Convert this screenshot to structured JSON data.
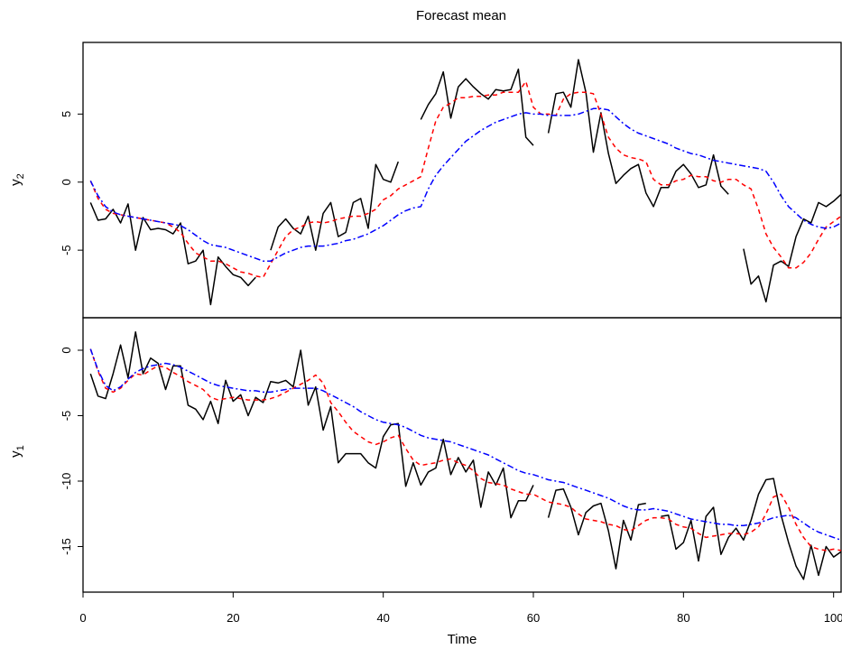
{
  "chart_data": {
    "type": "line",
    "title": "Forecast mean",
    "xlabel": "Time",
    "xlim": [
      0,
      101
    ],
    "xticks": [
      "0",
      "20",
      "40",
      "60",
      "80",
      "100"
    ],
    "colors": {
      "observed": "#000000",
      "forecast_red": "#ff0000",
      "forecast_blue": "#0000ff"
    },
    "panels": [
      {
        "ylabel": "y",
        "ylabel_sub": "2",
        "ylim": [
          -9.5,
          9.8
        ],
        "yticks": [
          "-5",
          "0",
          "5"
        ],
        "series": [
          {
            "values": [
              -1.5,
              -2.8,
              -2.7,
              -2.0,
              -3.0,
              -1.6,
              -5.0,
              -2.6,
              -3.5,
              -3.4,
              -3.5,
              -3.8,
              -3.0,
              -6.0,
              -5.8,
              -5.0,
              -9.0,
              -5.5,
              -6.2,
              -6.8,
              -7.0,
              -7.6,
              -7.0,
              null,
              -5.0,
              -3.3,
              -2.7,
              -3.4,
              -3.8,
              -2.5,
              -5.0,
              -2.3,
              -1.5,
              -4.0,
              -3.7,
              -1.5,
              -1.2,
              -3.4,
              1.3,
              0.2,
              0,
              1.5,
              null,
              null,
              4.6,
              5.7,
              6.5,
              8.1,
              4.7,
              7.0,
              7.6,
              7.0,
              6.5,
              6.1,
              6.8,
              6.7,
              6.8,
              8.3,
              3.3,
              2.7,
              null,
              3.6,
              6.5,
              6.6,
              5.5,
              9.0,
              6.6,
              2.2,
              5.1,
              2.1,
              -0.1,
              0.5,
              1.0,
              1.3,
              -0.8,
              -1.8,
              -0.4,
              -0.4,
              0.8,
              1.3,
              0.6,
              -0.4,
              -0.2,
              2.0,
              -0.3,
              -0.9,
              null,
              -4.9,
              -7.5,
              -6.9,
              -8.8,
              -6.1,
              -5.8,
              -6.2,
              -4.0,
              -2.7,
              -3.0,
              -1.5,
              -1.8,
              -1.4,
              -0.9
            ]
          },
          {
            "values": [
              0.1,
              -1.2,
              -2.0,
              -2.3,
              -2.4,
              -2.5,
              -2.6,
              -2.7,
              -2.8,
              -2.9,
              -3.0,
              -3.3,
              -3.7,
              -4.5,
              -5.2,
              -5.5,
              -5.8,
              -5.8,
              -6.0,
              -6.3,
              -6.6,
              -6.7,
              -6.9,
              -7.0,
              -6.0,
              -5.0,
              -4.0,
              -3.5,
              -3.3,
              -3.0,
              -2.9,
              -3.0,
              -2.9,
              -2.7,
              -2.6,
              -2.5,
              -2.5,
              -2.3,
              -2.0,
              -1.3,
              -1.0,
              -0.5,
              -0.2,
              0.1,
              0.4,
              2.5,
              4.5,
              5.5,
              5.8,
              6.2,
              6.2,
              6.3,
              6.3,
              6.4,
              6.4,
              6.6,
              6.6,
              6.6,
              7.4,
              5.5,
              5.0,
              5.0,
              4.9,
              6.1,
              6.5,
              6.6,
              6.6,
              6.5,
              5.0,
              3.3,
              2.5,
              2.0,
              1.8,
              1.7,
              1.5,
              0.2,
              -0.2,
              -0.2,
              0.1,
              0.2,
              0.5,
              0.4,
              0.4,
              0.1,
              0.0,
              0.2,
              0.2,
              -0.2,
              -0.5,
              -2.0,
              -3.8,
              -4.8,
              -5.5,
              -6.3,
              -6.3,
              -5.9,
              -5.2,
              -4.2,
              -3.3,
              -2.9,
              -2.5
            ]
          },
          {
            "values": [
              0.1,
              -1.0,
              -1.8,
              -2.2,
              -2.4,
              -2.5,
              -2.6,
              -2.7,
              -2.8,
              -2.9,
              -3.0,
              -3.1,
              -3.2,
              -3.5,
              -3.9,
              -4.3,
              -4.6,
              -4.7,
              -4.8,
              -5.0,
              -5.2,
              -5.4,
              -5.6,
              -5.8,
              -5.8,
              -5.5,
              -5.2,
              -5.0,
              -4.8,
              -4.7,
              -4.7,
              -4.7,
              -4.6,
              -4.5,
              -4.3,
              -4.2,
              -4.0,
              -3.8,
              -3.5,
              -3.2,
              -2.8,
              -2.4,
              -2.1,
              -1.9,
              -1.8,
              -0.5,
              0.5,
              1.2,
              1.8,
              2.4,
              3.0,
              3.4,
              3.8,
              4.1,
              4.4,
              4.6,
              4.8,
              5.0,
              5.1,
              5.0,
              5.0,
              4.9,
              4.9,
              4.9,
              4.9,
              5.0,
              5.2,
              5.4,
              5.4,
              5.3,
              4.8,
              4.3,
              3.9,
              3.6,
              3.4,
              3.2,
              3.0,
              2.8,
              2.5,
              2.3,
              2.1,
              2.0,
              1.8,
              1.6,
              1.5,
              1.4,
              1.3,
              1.2,
              1.1,
              1.0,
              0.8,
              0.0,
              -1.0,
              -1.8,
              -2.3,
              -2.8,
              -3.1,
              -3.3,
              -3.4,
              -3.3,
              -3.0
            ]
          }
        ]
      },
      {
        "ylabel": "y",
        "ylabel_sub": "1",
        "ylim": [
          -18.0,
          2.0
        ],
        "yticks": [
          "-15",
          "-10",
          "-5",
          "0"
        ],
        "series": [
          {
            "values": [
              -1.8,
              -3.5,
              -3.7,
              -1.8,
              0.4,
              -2.1,
              1.4,
              -1.8,
              -0.6,
              -1.0,
              -3.0,
              -1.2,
              -1.2,
              -4.2,
              -4.5,
              -5.3,
              -3.9,
              -5.6,
              -2.3,
              -3.9,
              -3.4,
              -5.0,
              -3.6,
              -4.0,
              -2.4,
              -2.5,
              -2.3,
              -2.8,
              0,
              -4.2,
              -2.8,
              -6.1,
              -4.3,
              -8.6,
              -7.9,
              -7.9,
              -7.9,
              -8.6,
              -9.0,
              -6.6,
              -5.7,
              -5.6,
              -10.4,
              -8.6,
              -10.3,
              -9.3,
              -9.0,
              -6.8,
              -9.5,
              -8.2,
              -9.3,
              -8.4,
              -12.0,
              -9.3,
              -10.3,
              -9.0,
              -12.8,
              -11.5,
              -11.5,
              -10.3,
              null,
              -12.8,
              -10.7,
              -10.6,
              -12.0,
              -14.1,
              -12.4,
              -11.9,
              -11.7,
              -13.8,
              -16.7,
              -13.0,
              -14.5,
              -11.8,
              -11.7,
              null,
              -12.7,
              -12.6,
              -15.2,
              -14.7,
              -13.0,
              -16.1,
              -12.7,
              -12.0,
              -15.6,
              -14.3,
              -13.6,
              -14.5,
              -13.0,
              -11.0,
              -9.9,
              -9.8,
              -12.6,
              -14.7,
              -16.5,
              -17.5,
              -14.9,
              -17.2,
              -15.0,
              -15.8,
              -15.4
            ]
          },
          {
            "values": [
              0.1,
              -1.6,
              -2.9,
              -3.2,
              -2.9,
              -2.3,
              -1.8,
              -1.9,
              -1.5,
              -1.2,
              -1.3,
              -1.7,
              -2.0,
              -2.4,
              -2.7,
              -3.0,
              -3.6,
              -3.8,
              -3.7,
              -3.6,
              -3.7,
              -3.8,
              -3.8,
              -3.8,
              -3.7,
              -3.5,
              -3.2,
              -2.9,
              -2.6,
              -2.3,
              -1.9,
              -2.5,
              -4.0,
              -4.7,
              -5.5,
              -6.2,
              -6.6,
              -7.0,
              -7.2,
              -7.0,
              -6.7,
              -6.5,
              -7.5,
              -8.4,
              -8.8,
              -8.7,
              -8.6,
              -8.4,
              -8.3,
              -8.6,
              -8.8,
              -9.2,
              -9.8,
              -10.1,
              -10.2,
              -10.3,
              -10.6,
              -10.8,
              -11.0,
              -11.0,
              -11.3,
              -11.6,
              -11.7,
              -11.8,
              -12.0,
              -12.5,
              -12.9,
              -13.0,
              -13.1,
              -13.3,
              -13.4,
              -13.7,
              -13.8,
              -13.4,
              -13.0,
              -12.8,
              -12.8,
              -12.9,
              -13.3,
              -13.5,
              -13.6,
              -14.0,
              -14.3,
              -14.2,
              -14.1,
              -14.0,
              -14.0,
              -14.1,
              -13.9,
              -13.5,
              -12.5,
              -11.2,
              -11.0,
              -12.0,
              -13.3,
              -14.3,
              -15.0,
              -15.2,
              -15.3,
              -15.2,
              -15.3
            ]
          },
          {
            "values": [
              0.1,
              -1.5,
              -2.7,
              -3.1,
              -2.8,
              -2.2,
              -1.7,
              -1.4,
              -1.2,
              -1.1,
              -1.0,
              -1.1,
              -1.3,
              -1.6,
              -1.9,
              -2.2,
              -2.5,
              -2.7,
              -2.8,
              -2.9,
              -3.0,
              -3.1,
              -3.1,
              -3.2,
              -3.2,
              -3.1,
              -3.0,
              -2.9,
              -2.9,
              -2.9,
              -2.9,
              -3.1,
              -3.4,
              -3.7,
              -4.0,
              -4.3,
              -4.7,
              -5.0,
              -5.3,
              -5.5,
              -5.6,
              -5.7,
              -5.9,
              -6.2,
              -6.5,
              -6.7,
              -6.8,
              -6.9,
              -7.0,
              -7.2,
              -7.4,
              -7.6,
              -7.8,
              -8.0,
              -8.3,
              -8.6,
              -8.9,
              -9.2,
              -9.4,
              -9.5,
              -9.7,
              -9.9,
              -10.0,
              -10.1,
              -10.3,
              -10.5,
              -10.7,
              -10.9,
              -11.1,
              -11.3,
              -11.6,
              -11.9,
              -12.1,
              -12.2,
              -12.2,
              -12.1,
              -12.2,
              -12.3,
              -12.5,
              -12.7,
              -12.9,
              -13.0,
              -13.1,
              -13.2,
              -13.3,
              -13.3,
              -13.4,
              -13.4,
              -13.3,
              -13.2,
              -13.0,
              -12.8,
              -12.7,
              -12.6,
              -12.8,
              -13.2,
              -13.6,
              -13.9,
              -14.1,
              -14.3,
              -14.5
            ]
          }
        ]
      }
    ]
  }
}
